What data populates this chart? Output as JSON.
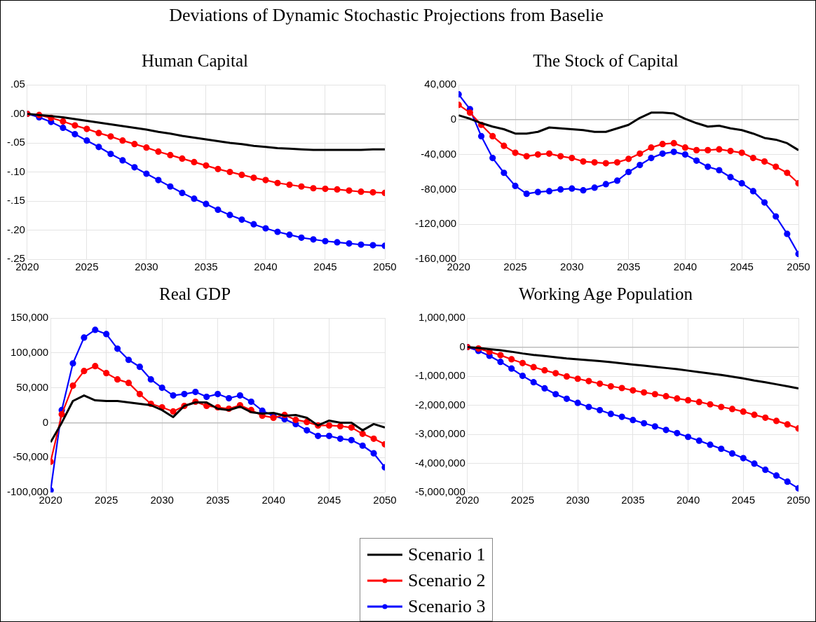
{
  "chart_data": [
    {
      "type": "line",
      "title": "Human Capital",
      "legend": "bottom",
      "annotations": [
        "Deviations of Dynamic Stochastic Projections from Baselie"
      ],
      "x": [
        2020,
        2021,
        2022,
        2023,
        2024,
        2025,
        2026,
        2027,
        2028,
        2029,
        2030,
        2031,
        2032,
        2033,
        2034,
        2035,
        2036,
        2037,
        2038,
        2039,
        2040,
        2041,
        2042,
        2043,
        2044,
        2045,
        2046,
        2047,
        2048,
        2049,
        2050
      ],
      "xlim": [
        2020,
        2050
      ],
      "xticks": [
        2020,
        2025,
        2030,
        2035,
        2040,
        2045,
        2050
      ],
      "ylim": [
        -0.25,
        0.05
      ],
      "yticks": [
        {
          "value": -0.25,
          "label": "-.25"
        },
        {
          "value": -0.2,
          "label": "-.20"
        },
        {
          "value": -0.15,
          "label": "-.15"
        },
        {
          "value": -0.1,
          "label": "-.10"
        },
        {
          "value": -0.05,
          "label": "-.05"
        },
        {
          "value": 0,
          "label": ".00"
        },
        {
          "value": 0.05,
          "label": ".05"
        }
      ],
      "grid": true,
      "series": [
        {
          "name": "Scenario 1",
          "color": "#000000",
          "marker": "none",
          "values": [
            0,
            -0.002,
            -0.004,
            -0.006,
            -0.009,
            -0.012,
            -0.015,
            -0.018,
            -0.021,
            -0.024,
            -0.027,
            -0.031,
            -0.034,
            -0.038,
            -0.041,
            -0.044,
            -0.047,
            -0.05,
            -0.052,
            -0.055,
            -0.057,
            -0.059,
            -0.06,
            -0.061,
            -0.062,
            -0.062,
            -0.062,
            -0.062,
            -0.062,
            -0.061,
            -0.061
          ]
        },
        {
          "name": "Scenario 2",
          "color": "#ff0000",
          "marker": "circle",
          "values": [
            0,
            -0.002,
            -0.007,
            -0.013,
            -0.02,
            -0.026,
            -0.033,
            -0.039,
            -0.046,
            -0.052,
            -0.058,
            -0.065,
            -0.071,
            -0.077,
            -0.083,
            -0.089,
            -0.095,
            -0.1,
            -0.105,
            -0.11,
            -0.114,
            -0.119,
            -0.122,
            -0.125,
            -0.128,
            -0.129,
            -0.13,
            -0.132,
            -0.134,
            -0.135,
            -0.136
          ]
        },
        {
          "name": "Scenario 3",
          "color": "#0000ff",
          "marker": "circle",
          "values": [
            0,
            -0.006,
            -0.014,
            -0.024,
            -0.035,
            -0.046,
            -0.057,
            -0.069,
            -0.08,
            -0.092,
            -0.103,
            -0.114,
            -0.125,
            -0.136,
            -0.146,
            -0.155,
            -0.165,
            -0.174,
            -0.182,
            -0.19,
            -0.197,
            -0.203,
            -0.208,
            -0.213,
            -0.216,
            -0.219,
            -0.221,
            -0.223,
            -0.225,
            -0.226,
            -0.227
          ]
        }
      ]
    },
    {
      "type": "line",
      "title": "The Stock of Capital",
      "x": [
        2020,
        2021,
        2022,
        2023,
        2024,
        2025,
        2026,
        2027,
        2028,
        2029,
        2030,
        2031,
        2032,
        2033,
        2034,
        2035,
        2036,
        2037,
        2038,
        2039,
        2040,
        2041,
        2042,
        2043,
        2044,
        2045,
        2046,
        2047,
        2048,
        2049,
        2050
      ],
      "xlim": [
        2020,
        2050
      ],
      "xticks": [
        2020,
        2025,
        2030,
        2035,
        2040,
        2045,
        2050
      ],
      "ylim": [
        -160000,
        40000
      ],
      "yticks": [
        {
          "value": -160000,
          "label": "-160,000"
        },
        {
          "value": -120000,
          "label": "-120,000"
        },
        {
          "value": -80000,
          "label": "-80,000"
        },
        {
          "value": -40000,
          "label": "-40,000"
        },
        {
          "value": 0,
          "label": "0"
        },
        {
          "value": 40000,
          "label": "40,000"
        }
      ],
      "grid": true,
      "series": [
        {
          "color": "#000000",
          "marker": "none",
          "values": [
            5000,
            1000,
            -4000,
            -8000,
            -11000,
            -16000,
            -16000,
            -14000,
            -9000,
            -10000,
            -11000,
            -12000,
            -14000,
            -14000,
            -10000,
            -6000,
            2000,
            8000,
            8000,
            7000,
            1000,
            -4000,
            -8000,
            -7000,
            -10000,
            -12000,
            -16000,
            -21000,
            -23000,
            -27000,
            -35000
          ]
        },
        {
          "color": "#ff0000",
          "marker": "circle",
          "values": [
            17000,
            8000,
            -6000,
            -19000,
            -30000,
            -38000,
            -42000,
            -40000,
            -39000,
            -42000,
            -44000,
            -48000,
            -49000,
            -50000,
            -49000,
            -45000,
            -39000,
            -32000,
            -28000,
            -27000,
            -32000,
            -35000,
            -35000,
            -34000,
            -36000,
            -38000,
            -44000,
            -48000,
            -54000,
            -61000,
            -73000
          ]
        },
        {
          "color": "#0000ff",
          "marker": "circle",
          "values": [
            29000,
            12000,
            -19000,
            -44000,
            -61000,
            -76000,
            -85000,
            -83000,
            -82000,
            -80000,
            -79000,
            -81000,
            -78000,
            -74000,
            -70000,
            -60000,
            -52000,
            -44000,
            -39000,
            -37000,
            -40000,
            -47000,
            -54000,
            -58000,
            -66000,
            -73000,
            -82000,
            -95000,
            -111000,
            -131000,
            -154000
          ]
        }
      ]
    },
    {
      "type": "line",
      "title": "Real GDP",
      "x": [
        2020,
        2021,
        2022,
        2023,
        2024,
        2025,
        2026,
        2027,
        2028,
        2029,
        2030,
        2031,
        2032,
        2033,
        2034,
        2035,
        2036,
        2037,
        2038,
        2039,
        2040,
        2041,
        2042,
        2043,
        2044,
        2045,
        2046,
        2047,
        2048,
        2049,
        2050
      ],
      "xlim": [
        2020,
        2050
      ],
      "xticks": [
        2020,
        2025,
        2030,
        2035,
        2040,
        2045,
        2050
      ],
      "ylim": [
        -100000,
        150000
      ],
      "yticks": [
        {
          "value": -100000,
          "label": "-100,000"
        },
        {
          "value": -50000,
          "label": "-50,000"
        },
        {
          "value": 0,
          "label": "0"
        },
        {
          "value": 50000,
          "label": "50,000"
        },
        {
          "value": 100000,
          "label": "100,000"
        },
        {
          "value": 150000,
          "label": "150,000"
        }
      ],
      "grid": true,
      "series": [
        {
          "color": "#000000",
          "marker": "none",
          "values": [
            -28000,
            0,
            31000,
            39000,
            32000,
            31000,
            31000,
            29000,
            27000,
            25000,
            18000,
            8000,
            24000,
            29000,
            29000,
            20000,
            18000,
            23000,
            15000,
            13000,
            14000,
            10000,
            11000,
            7000,
            -4000,
            3000,
            0,
            0,
            -11000,
            -2000,
            -7000
          ]
        },
        {
          "color": "#ff0000",
          "marker": "circle",
          "values": [
            -56000,
            12000,
            53000,
            74000,
            81000,
            71000,
            62000,
            57000,
            41000,
            27000,
            22000,
            16000,
            24000,
            30000,
            24000,
            22000,
            20000,
            25000,
            18000,
            10000,
            7000,
            11000,
            4000,
            1000,
            -4000,
            -4000,
            -5000,
            -7000,
            -16000,
            -23000,
            -31000
          ]
        },
        {
          "color": "#0000ff",
          "marker": "circle",
          "values": [
            -97000,
            18000,
            85000,
            122000,
            133000,
            127000,
            106000,
            90000,
            80000,
            62000,
            50000,
            39000,
            41000,
            44000,
            37000,
            41000,
            35000,
            39000,
            30000,
            17000,
            10000,
            5000,
            -2000,
            -11000,
            -19000,
            -19000,
            -23000,
            -25000,
            -33000,
            -44000,
            -64000
          ]
        }
      ]
    },
    {
      "type": "line",
      "title": "Working Age Population",
      "x": [
        2020,
        2021,
        2022,
        2023,
        2024,
        2025,
        2026,
        2027,
        2028,
        2029,
        2030,
        2031,
        2032,
        2033,
        2034,
        2035,
        2036,
        2037,
        2038,
        2039,
        2040,
        2041,
        2042,
        2043,
        2044,
        2045,
        2046,
        2047,
        2048,
        2049,
        2050
      ],
      "xlim": [
        2020,
        2050
      ],
      "xticks": [
        2020,
        2025,
        2030,
        2035,
        2040,
        2045,
        2050
      ],
      "ylim": [
        -5000000,
        1000000
      ],
      "yticks": [
        {
          "value": -5000000,
          "label": "-5,000,000"
        },
        {
          "value": -4000000,
          "label": "-4,000,000"
        },
        {
          "value": -3000000,
          "label": "-3,000,000"
        },
        {
          "value": -2000000,
          "label": "-2,000,000"
        },
        {
          "value": -1000000,
          "label": "-1,000,000"
        },
        {
          "value": 0,
          "label": "0"
        },
        {
          "value": 1000000,
          "label": "1,000,000"
        }
      ],
      "grid": true,
      "series": [
        {
          "color": "#000000",
          "marker": "none",
          "values": [
            0,
            -30000,
            -70000,
            -110000,
            -160000,
            -220000,
            -270000,
            -310000,
            -350000,
            -390000,
            -420000,
            -450000,
            -480000,
            -520000,
            -560000,
            -600000,
            -640000,
            -680000,
            -720000,
            -760000,
            -810000,
            -860000,
            -910000,
            -960000,
            -1020000,
            -1080000,
            -1150000,
            -1210000,
            -1280000,
            -1350000,
            -1420000
          ]
        },
        {
          "color": "#ff0000",
          "marker": "circle",
          "values": [
            0,
            -50000,
            -160000,
            -280000,
            -420000,
            -550000,
            -690000,
            -800000,
            -900000,
            -1010000,
            -1090000,
            -1170000,
            -1260000,
            -1350000,
            -1410000,
            -1490000,
            -1560000,
            -1620000,
            -1690000,
            -1770000,
            -1830000,
            -1890000,
            -1970000,
            -2060000,
            -2130000,
            -2220000,
            -2330000,
            -2430000,
            -2540000,
            -2660000,
            -2800000
          ]
        },
        {
          "color": "#0000ff",
          "marker": "circle",
          "values": [
            0,
            -130000,
            -300000,
            -510000,
            -740000,
            -990000,
            -1210000,
            -1420000,
            -1620000,
            -1780000,
            -1920000,
            -2060000,
            -2170000,
            -2300000,
            -2400000,
            -2510000,
            -2620000,
            -2730000,
            -2850000,
            -2960000,
            -3090000,
            -3220000,
            -3360000,
            -3500000,
            -3660000,
            -3820000,
            -4010000,
            -4220000,
            -4420000,
            -4630000,
            -4860000
          ]
        }
      ]
    }
  ]
}
